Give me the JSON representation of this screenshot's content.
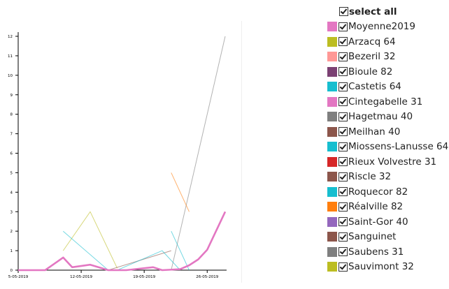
{
  "chart_data": {
    "type": "line",
    "title": "",
    "xlabel": "",
    "ylabel": "",
    "ylim": [
      0,
      12
    ],
    "yticks": [
      "0",
      "1",
      "2",
      "3",
      "4",
      "5",
      "6",
      "7",
      "8",
      "9",
      "10",
      "11",
      "12"
    ],
    "xlim": [
      "2019-05-05",
      "2019-05-28"
    ],
    "xticks": [
      {
        "date": "2019-05-05",
        "label": "5-05-2019"
      },
      {
        "date": "2019-05-12",
        "label": "12-05-2019"
      },
      {
        "date": "2019-05-19",
        "label": "19-05-2019"
      },
      {
        "date": "2019-05-26",
        "label": "26-05-2019"
      }
    ],
    "grid": false,
    "legend_position": "right",
    "select_all_label": "select all",
    "series": [
      {
        "name": "Moyenne2019",
        "color": "#e377c2",
        "emphasis": true,
        "points": [
          [
            "2019-05-05",
            0
          ],
          [
            "2019-05-08",
            0
          ],
          [
            "2019-05-10",
            0.65
          ],
          [
            "2019-05-11",
            0.15
          ],
          [
            "2019-05-13",
            0.28
          ],
          [
            "2019-05-15",
            0
          ],
          [
            "2019-05-17",
            0
          ],
          [
            "2019-05-20",
            0.15
          ],
          [
            "2019-05-21",
            0
          ],
          [
            "2019-05-23",
            0.05
          ],
          [
            "2019-05-24",
            0.25
          ],
          [
            "2019-05-25",
            0.55
          ],
          [
            "2019-05-26",
            1.05
          ],
          [
            "2019-05-28",
            3.0
          ]
        ]
      },
      {
        "name": "Arzacq 64",
        "color": "#bcbd22",
        "points": [
          [
            "2019-05-10",
            1.0
          ],
          [
            "2019-05-13",
            3.0
          ],
          [
            "2019-05-16",
            0.1
          ]
        ]
      },
      {
        "name": "Bezeril 32",
        "color": "#ff9896",
        "points": []
      },
      {
        "name": "Bioule 82",
        "color": "#7b4173",
        "points": []
      },
      {
        "name": "Castetis 64",
        "color": "#17becf",
        "points": [
          [
            "2019-05-10",
            2.0
          ],
          [
            "2019-05-15",
            0
          ],
          [
            "2019-05-16",
            0
          ]
        ]
      },
      {
        "name": "Cintegabelle 31",
        "color": "#e377c2",
        "points": []
      },
      {
        "name": "Hagetmau 40",
        "color": "#7f7f7f",
        "points": [
          [
            "2019-05-22",
            0
          ],
          [
            "2019-05-28",
            12.0
          ]
        ]
      },
      {
        "name": "Meilhan 40",
        "color": "#8c564b",
        "points": [
          [
            "2019-05-15",
            0
          ],
          [
            "2019-05-22",
            1.0
          ]
        ]
      },
      {
        "name": "Miossens-Lanusse 64",
        "color": "#17becf",
        "points": [
          [
            "2019-05-16",
            0
          ],
          [
            "2019-05-21",
            1.0
          ],
          [
            "2019-05-23",
            0
          ]
        ]
      },
      {
        "name": "Rieux Volvestre 31",
        "color": "#d62728",
        "points": []
      },
      {
        "name": "Riscle 32",
        "color": "#8c564b",
        "points": []
      },
      {
        "name": "Roquecor 82",
        "color": "#17becf",
        "points": [
          [
            "2019-05-22",
            2.0
          ],
          [
            "2019-05-24",
            0
          ]
        ]
      },
      {
        "name": "Réalville 82",
        "color": "#ff7f0e",
        "points": [
          [
            "2019-05-22",
            5.0
          ],
          [
            "2019-05-24",
            3.0
          ]
        ]
      },
      {
        "name": "Saint-Gor 40",
        "color": "#9467bd",
        "points": []
      },
      {
        "name": "Sanguinet",
        "color": "#8c564b",
        "points": []
      },
      {
        "name": "Saubens 31",
        "color": "#7f7f7f",
        "points": []
      },
      {
        "name": "Sauvimont 32",
        "color": "#bcbd22",
        "points": []
      }
    ]
  }
}
